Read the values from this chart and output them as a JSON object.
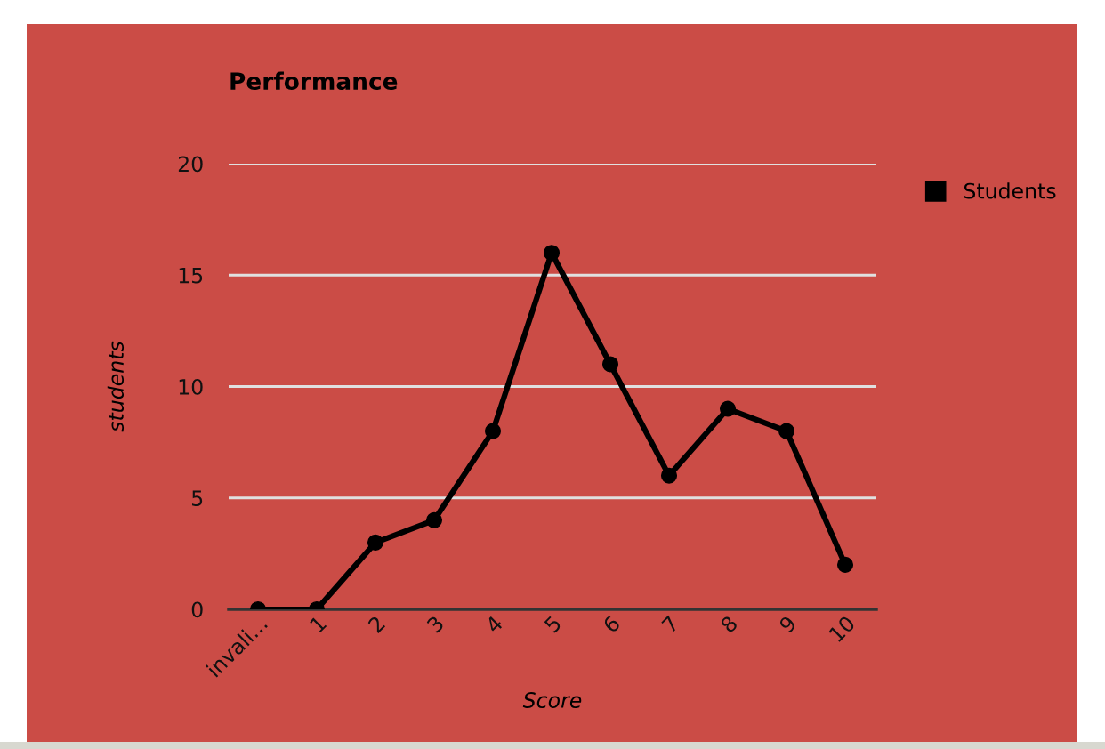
{
  "chart_data": {
    "type": "line",
    "title": "Performance",
    "xlabel": "Score",
    "ylabel": "students",
    "categories": [
      "invali...",
      "1",
      "2",
      "3",
      "4",
      "5",
      "6",
      "7",
      "8",
      "9",
      "10"
    ],
    "series": [
      {
        "name": "Students",
        "color": "#000000",
        "values": [
          0,
          0,
          3,
          4,
          8,
          16,
          11,
          6,
          9,
          8,
          2
        ]
      }
    ],
    "ylim": [
      0,
      20
    ],
    "yticks": [
      0,
      5,
      10,
      15,
      20
    ],
    "grid": "y",
    "legend": "top right",
    "marker": "circle",
    "line_style": "solid"
  }
}
